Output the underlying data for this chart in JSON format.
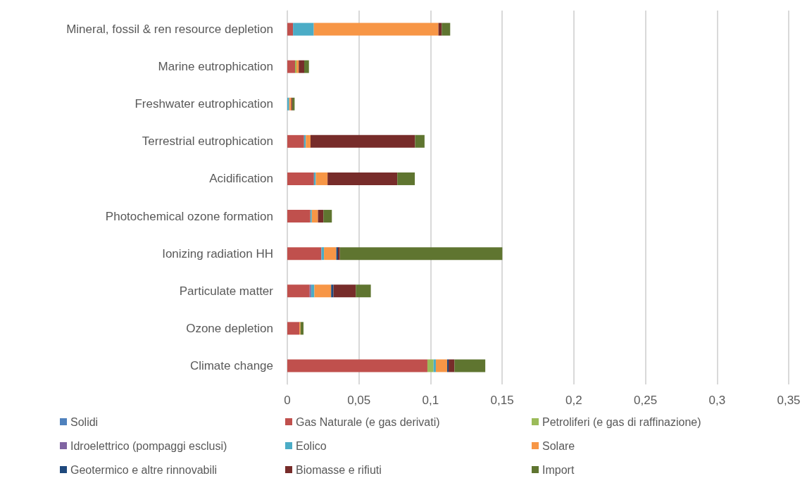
{
  "chart_data": {
    "type": "bar",
    "orientation": "horizontal",
    "stacked": true,
    "categories": [
      "Mineral, fossil & ren resource depletion",
      "Marine eutrophication",
      "Freshwater eutrophication",
      "Terrestrial eutrophication",
      "Acidification",
      "Photochemical ozone formation",
      "Ionizing radiation HH",
      "Particulate matter",
      "Ozone depletion",
      "Climate change"
    ],
    "series": [
      {
        "name": "Solidi",
        "color": "#4f81bd",
        "values": [
          0,
          0,
          0,
          0,
          0,
          0,
          0,
          0,
          0,
          0
        ]
      },
      {
        "name": "Gas Naturale (e gas derivati)",
        "color": "#c0504d",
        "values": [
          0.004,
          0.0054,
          0,
          0.0117,
          0.0186,
          0.0161,
          0.0238,
          0.0156,
          0.0084,
          0.0978
        ]
      },
      {
        "name": "Petroliferi (e gas di raffinazione)",
        "color": "#9bbb59",
        "values": [
          0,
          0.001,
          0,
          0,
          0,
          0,
          0,
          0,
          0,
          0.0043
        ]
      },
      {
        "name": "Idroelettrico (pompaggi esclusi)",
        "color": "#8064a2",
        "values": [
          0,
          0,
          0,
          0,
          0,
          0,
          0,
          0.001,
          0,
          0
        ]
      },
      {
        "name": "Eolico",
        "color": "#4bacc6",
        "values": [
          0.0145,
          0,
          0.0013,
          0.0012,
          0.0013,
          0.001,
          0.0018,
          0.0023,
          0,
          0.0016
        ]
      },
      {
        "name": "Solare",
        "color": "#f79646",
        "values": [
          0.087,
          0.0016,
          0.0015,
          0.0033,
          0.0082,
          0.0043,
          0.0086,
          0.0117,
          0.0008,
          0.0079
        ]
      },
      {
        "name": "Geotermico e altre rinnovabili",
        "color": "#1f497d",
        "values": [
          0,
          0,
          0,
          0,
          0,
          0,
          0.0012,
          0.0016,
          0,
          0.001
        ]
      },
      {
        "name": "Biomasse e rifiuti",
        "color": "#772c2a",
        "values": [
          0.0023,
          0.0038,
          0.0007,
          0.073,
          0.0487,
          0.0038,
          0.0013,
          0.0156,
          0,
          0.0041
        ]
      },
      {
        "name": "Import",
        "color": "#5f7530",
        "values": [
          0.0059,
          0.0033,
          0.0016,
          0.0066,
          0.0122,
          0.0059,
          0.1134,
          0.0105,
          0.0021,
          0.0215
        ]
      }
    ],
    "xlim": [
      0,
      0.35
    ],
    "xticks": [
      0,
      {
        "value": 0.05,
        "label": "0,05"
      },
      {
        "value": 0.1,
        "label": "0,1"
      },
      {
        "value": 0.15,
        "label": "0,15"
      },
      {
        "value": 0.2,
        "label": "0,2"
      },
      {
        "value": 0.25,
        "label": "0,25"
      },
      {
        "value": 0.3,
        "label": "0,3"
      },
      {
        "value": 0.35,
        "label": "0,35"
      }
    ],
    "grid": "x",
    "legend": "bottom"
  }
}
